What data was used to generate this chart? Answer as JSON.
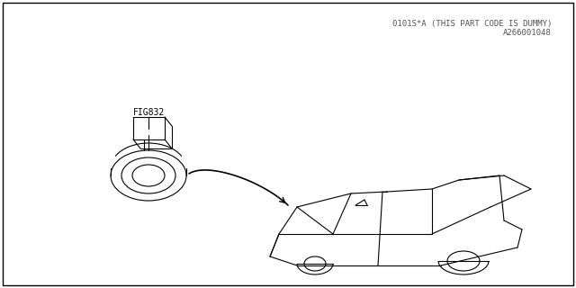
{
  "background_color": "#ffffff",
  "border_color": "#000000",
  "label_fig": "FIG832",
  "label_bottom1": "0101S*A (THIS PART CODE IS DUMMY)",
  "label_bottom2": "A266001048",
  "label_fontsize": 7,
  "border_linewidth": 1.0
}
